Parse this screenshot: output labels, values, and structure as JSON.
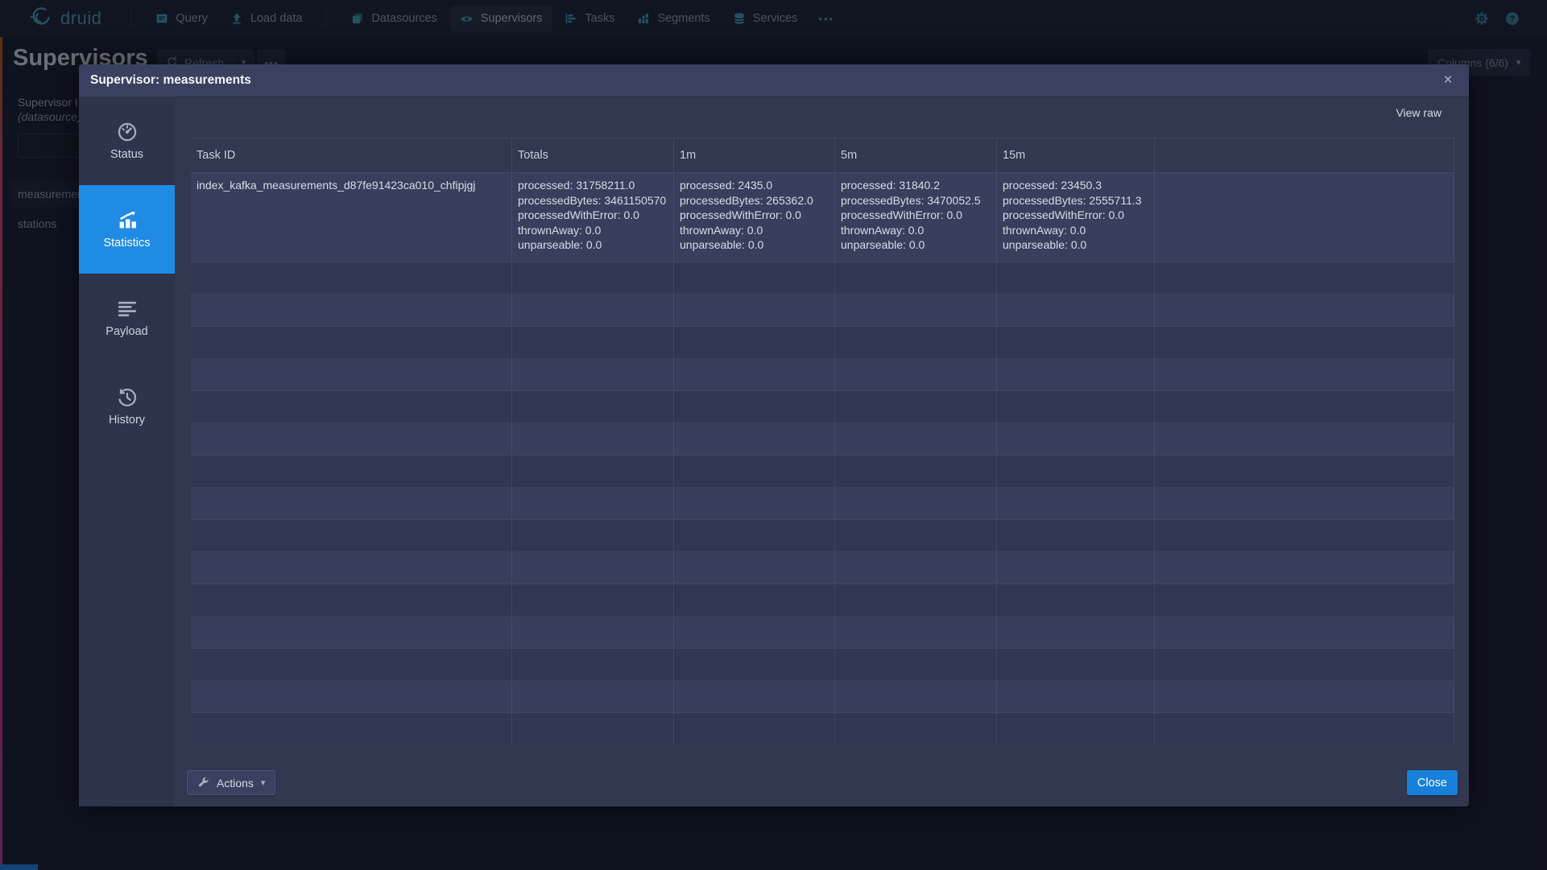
{
  "colors": {
    "accent_blue": "#1f8be5",
    "teal": "#3fa3b5",
    "teal_dim": "#35869a",
    "close_blue": "#1680da",
    "nav_icon": "#3fa3b5",
    "tab_icon": "#a6adc2",
    "tab_icon_active": "#ffffff"
  },
  "glyphs": {
    "caret_down": "▾",
    "close": "×",
    "more_dots": "•••"
  },
  "nav": {
    "brand": "druid",
    "items": [
      {
        "type": "divider"
      },
      {
        "type": "item",
        "label": "Query",
        "icon": "query-icon"
      },
      {
        "type": "item",
        "label": "Load data",
        "icon": "upload-icon"
      },
      {
        "type": "divider"
      },
      {
        "type": "item",
        "label": "Datasources",
        "icon": "datasources-icon"
      },
      {
        "type": "item",
        "label": "Supervisors",
        "icon": "eye-icon",
        "active": true
      },
      {
        "type": "item",
        "label": "Tasks",
        "icon": "tasks-icon"
      },
      {
        "type": "item",
        "label": "Segments",
        "icon": "segments-icon"
      },
      {
        "type": "item",
        "label": "Services",
        "icon": "database-icon"
      },
      {
        "type": "more",
        "label": "•••"
      }
    ]
  },
  "page": {
    "title": "Supervisors",
    "refresh_label": "Refresh",
    "more_label": "•••",
    "columns_label": "Columns (6/6)",
    "filter_header": "Supervisor ID",
    "filter_subheader": "(datasource)",
    "list_rows": [
      "measurements",
      "stations"
    ]
  },
  "dialog": {
    "title": "Supervisor: measurements",
    "view_raw_label": "View raw",
    "tabs": [
      {
        "label": "Status",
        "icon": "gauge-icon",
        "active": false
      },
      {
        "label": "Statistics",
        "icon": "chart-icon",
        "active": true
      },
      {
        "label": "Payload",
        "icon": "align-left-icon",
        "active": false
      },
      {
        "label": "History",
        "icon": "history-icon",
        "active": false
      }
    ],
    "table": {
      "columns": [
        "Task ID",
        "Totals",
        "1m",
        "5m",
        "15m",
        ""
      ],
      "stat_column_keys": [
        "Totals",
        "1m",
        "5m",
        "15m"
      ],
      "rows": [
        {
          "task_id": "index_kafka_measurements_d87fe91423ca010_chfipjgj",
          "stats": {
            "Totals": [
              "processed: 31758211.0",
              "processedBytes: 3461150570",
              "processedWithError: 0.0",
              "thrownAway: 0.0",
              "unparseable: 0.0"
            ],
            "1m": [
              "processed: 2435.0",
              "processedBytes: 265362.0",
              "processedWithError: 0.0",
              "thrownAway: 0.0",
              "unparseable: 0.0"
            ],
            "5m": [
              "processed: 31840.2",
              "processedBytes: 3470052.5",
              "processedWithError: 0.0",
              "thrownAway: 0.0",
              "unparseable: 0.0"
            ],
            "15m": [
              "processed: 23450.3",
              "processedBytes: 2555711.3",
              "processedWithError: 0.0",
              "thrownAway: 0.0",
              "unparseable: 0.0"
            ]
          }
        }
      ],
      "empty_row_count": 15
    },
    "footer": {
      "actions_label": "Actions",
      "close_label": "Close"
    }
  }
}
